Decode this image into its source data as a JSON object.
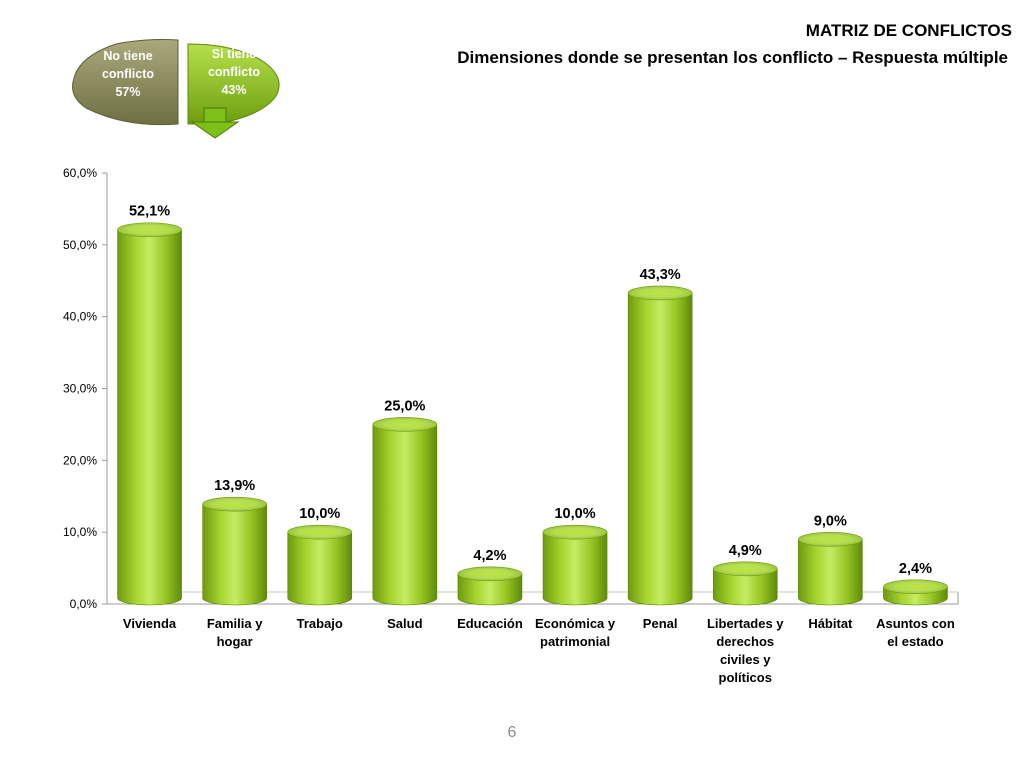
{
  "slide": {
    "title": "MATRIZ DE CONFLICTOS",
    "subtitle": "Dimensiones donde se presentan los conflicto – Respuesta múltiple",
    "page_number": "6"
  },
  "colors": {
    "bar_green": "#94c11f",
    "bar_light": "#c8e86a",
    "bar_dark": "#5f8a0a",
    "pie_olive": "#8a8a5e",
    "pie_green": "#8dc21f",
    "axis": "#9a9a9a"
  },
  "pie_chart": {
    "type": "pie",
    "slices": [
      {
        "label_lines": [
          "No tiene",
          "conflicto",
          "57%"
        ],
        "value": 57
      },
      {
        "label_lines": [
          "Si tiene",
          "conflicto",
          "43%"
        ],
        "value": 43
      }
    ],
    "icon": "arrow-down-icon"
  },
  "chart_data": {
    "type": "bar",
    "categories": [
      [
        "Vivienda"
      ],
      [
        "Familia y",
        "hogar"
      ],
      [
        "Trabajo"
      ],
      [
        "Salud"
      ],
      [
        "Educación"
      ],
      [
        "Económica y",
        "patrimonial"
      ],
      [
        "Penal"
      ],
      [
        "Libertades y",
        "derechos",
        "civiles y",
        "políticos"
      ],
      [
        "Hábitat"
      ],
      [
        "Asuntos con",
        "el estado"
      ]
    ],
    "values": [
      52.1,
      13.9,
      10.0,
      25.0,
      4.2,
      10.0,
      43.3,
      4.9,
      9.0,
      2.4
    ],
    "data_labels": [
      "52,1%",
      "13,9%",
      "10,0%",
      "25,0%",
      "4,2%",
      "10,0%",
      "43,3%",
      "4,9%",
      "9,0%",
      "2,4%"
    ],
    "yticks": [
      0,
      10,
      20,
      30,
      40,
      50,
      60
    ],
    "ytick_labels": [
      "0,0%",
      "10,0%",
      "20,0%",
      "30,0%",
      "40,0%",
      "50,0%",
      "60,0%"
    ],
    "ylim": [
      0,
      60
    ],
    "grid": false,
    "legend": "none"
  }
}
